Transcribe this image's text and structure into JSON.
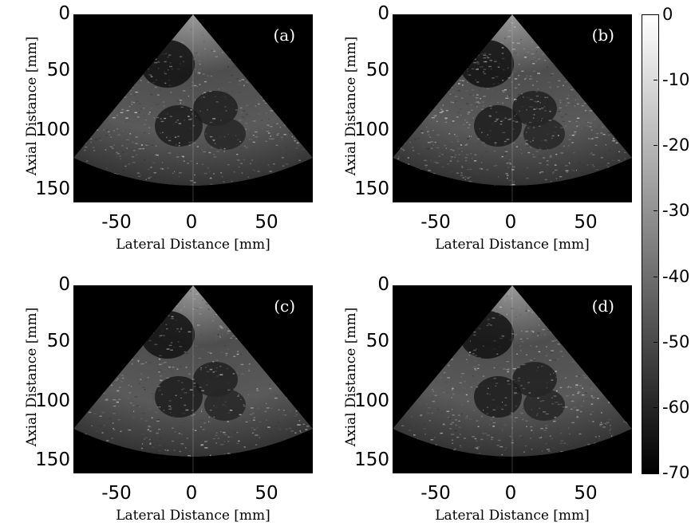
{
  "panels": [
    {
      "label": "(a)",
      "ylabel": "Axial Distance [mm]",
      "xlabel": "Lateral Distance [mm]"
    },
    {
      "label": "(b)",
      "ylabel": "Axial Distance [mm]",
      "xlabel": "Lateral Distance [mm]"
    },
    {
      "label": "(c)",
      "ylabel": "Axial Distance [mm]",
      "xlabel": "Lateral Distance [mm]"
    },
    {
      "label": "(d)",
      "ylabel": "Axial Distance [mm]",
      "xlabel": "Lateral Distance [mm]"
    }
  ],
  "axes": {
    "yticks": [
      "0",
      "50",
      "100",
      "150"
    ],
    "xticks": [
      "-50",
      "0",
      "50"
    ]
  },
  "colorbar": {
    "ticks": [
      "0",
      "-10",
      "-20",
      "-30",
      "-40",
      "-50",
      "-60",
      "-70"
    ],
    "colors": {
      "top": "#ffffff",
      "bottom": "#000000"
    }
  },
  "image": {
    "content": "cardiac ultrasound sector scan",
    "colormap": "grayscale"
  }
}
